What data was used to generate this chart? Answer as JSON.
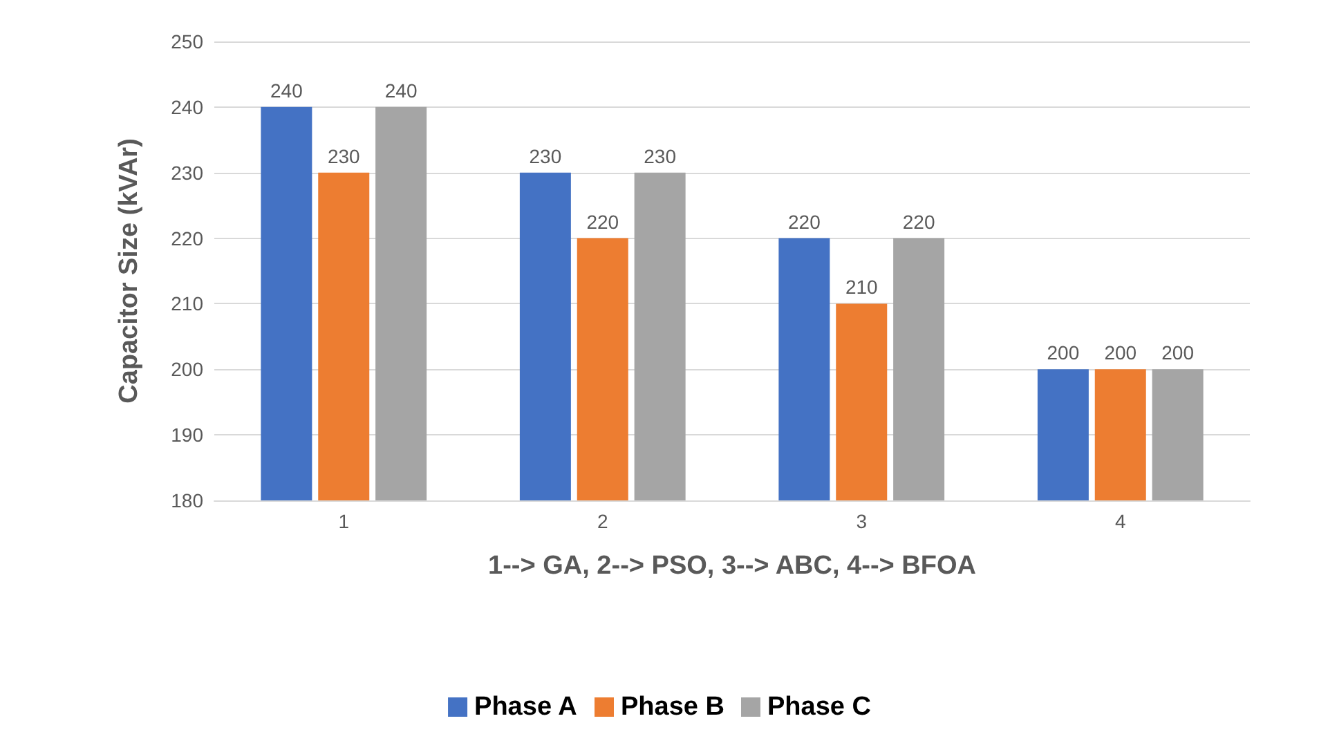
{
  "chart_data": {
    "type": "bar",
    "xlabel": "1--> GA, 2--> PSO, 3--> ABC, 4--> BFOA",
    "ylabel": "Capacitor Size (kVAr)",
    "categories": [
      "1",
      "2",
      "3",
      "4"
    ],
    "series": [
      {
        "name": "Phase A",
        "color": "#4472c4",
        "values": [
          240,
          230,
          220,
          200
        ]
      },
      {
        "name": "Phase B",
        "color": "#ed7d31",
        "values": [
          230,
          220,
          210,
          200
        ]
      },
      {
        "name": "Phase C",
        "color": "#a5a5a5",
        "values": [
          240,
          230,
          220,
          200
        ]
      }
    ],
    "ylim": [
      180,
      250
    ],
    "yticks": [
      180,
      190,
      200,
      210,
      220,
      230,
      240,
      250
    ],
    "grid": "y",
    "legend": "bottom",
    "data_labels": true
  }
}
